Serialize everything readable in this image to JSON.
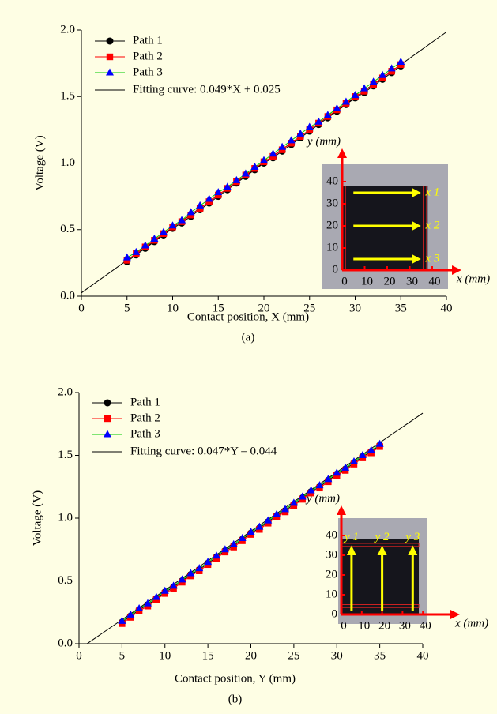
{
  "chart_data": [
    {
      "type": "line",
      "caption": "(a)",
      "x_label": "Contact position, X (mm)",
      "y_label": "Voltage (V)",
      "xlim": [
        0,
        40
      ],
      "xticks": [
        0,
        5,
        10,
        15,
        20,
        25,
        30,
        35,
        40
      ],
      "ylim": [
        0,
        2
      ],
      "yticks": [
        {
          "value": 0,
          "label": "0.0"
        },
        0.5,
        {
          "value": 1,
          "label": "1.0"
        },
        1.5,
        {
          "value": 2,
          "label": "2.0"
        }
      ],
      "x": [
        5,
        6,
        7,
        8,
        9,
        10,
        11,
        12,
        13,
        14,
        15,
        16,
        17,
        18,
        19,
        20,
        21,
        22,
        23,
        24,
        25,
        26,
        27,
        28,
        29,
        30,
        31,
        32,
        33,
        34,
        35
      ],
      "series": [
        {
          "name": "Path 1",
          "color": "#000000",
          "marker": "circle",
          "marker_color": "#000000",
          "values": [
            0.26,
            0.31,
            0.36,
            0.41,
            0.46,
            0.51,
            0.55,
            0.6,
            0.65,
            0.7,
            0.75,
            0.8,
            0.85,
            0.9,
            0.95,
            1.0,
            1.04,
            1.09,
            1.14,
            1.19,
            1.24,
            1.29,
            1.34,
            1.39,
            1.44,
            1.49,
            1.53,
            1.58,
            1.63,
            1.68,
            1.73
          ]
        },
        {
          "name": "Path 2",
          "color": "#ff0000",
          "marker": "square",
          "marker_color": "#ff0000",
          "values": [
            0.27,
            0.32,
            0.37,
            0.42,
            0.47,
            0.52,
            0.56,
            0.61,
            0.66,
            0.71,
            0.76,
            0.81,
            0.86,
            0.91,
            0.96,
            1.01,
            1.05,
            1.1,
            1.15,
            1.2,
            1.25,
            1.3,
            1.35,
            1.4,
            1.45,
            1.5,
            1.54,
            1.59,
            1.64,
            1.69,
            1.74
          ]
        },
        {
          "name": "Path 3",
          "color": "#00cc00",
          "marker": "triangle",
          "marker_color": "#0000ff",
          "values": [
            0.29,
            0.33,
            0.38,
            0.43,
            0.48,
            0.53,
            0.57,
            0.63,
            0.68,
            0.73,
            0.78,
            0.82,
            0.87,
            0.92,
            0.97,
            1.02,
            1.07,
            1.12,
            1.17,
            1.22,
            1.27,
            1.31,
            1.36,
            1.41,
            1.46,
            1.51,
            1.56,
            1.61,
            1.66,
            1.71,
            1.76
          ]
        }
      ],
      "fit": {
        "name": "Fitting curve: 0.049*X + 0.025",
        "color": "#000000",
        "x": [
          0,
          40
        ],
        "values": [
          0.025,
          1.985
        ]
      },
      "inset": {
        "x_label": "x (mm)",
        "y_label": "y (mm)",
        "xticks": [
          0,
          10,
          20,
          30,
          40
        ],
        "yticks": [
          0,
          10,
          20,
          30,
          40
        ],
        "path_labels": [
          "x 1",
          "x 2",
          "x 3"
        ]
      }
    },
    {
      "type": "line",
      "caption": "(b)",
      "x_label": "Contact position, Y (mm)",
      "y_label": "Voltage (V)",
      "xlim": [
        0,
        40
      ],
      "xticks": [
        0,
        5,
        10,
        15,
        20,
        25,
        30,
        35,
        40
      ],
      "ylim": [
        0,
        2
      ],
      "yticks": [
        {
          "value": 0,
          "label": "0.0"
        },
        0.5,
        {
          "value": 1,
          "label": "1.0"
        },
        1.5,
        {
          "value": 2,
          "label": "2.0"
        }
      ],
      "x": [
        5,
        6,
        7,
        8,
        9,
        10,
        11,
        12,
        13,
        14,
        15,
        16,
        17,
        18,
        19,
        20,
        21,
        22,
        23,
        24,
        25,
        26,
        27,
        28,
        29,
        30,
        31,
        32,
        33,
        34,
        35
      ],
      "series": [
        {
          "name": "Path 1",
          "color": "#000000",
          "marker": "circle",
          "marker_color": "#000000",
          "values": [
            0.17,
            0.22,
            0.27,
            0.31,
            0.36,
            0.41,
            0.45,
            0.5,
            0.55,
            0.59,
            0.64,
            0.69,
            0.74,
            0.78,
            0.83,
            0.88,
            0.92,
            0.97,
            1.02,
            1.06,
            1.11,
            1.16,
            1.21,
            1.25,
            1.3,
            1.35,
            1.39,
            1.44,
            1.49,
            1.53,
            1.58
          ]
        },
        {
          "name": "Path 2",
          "color": "#ff0000",
          "marker": "square",
          "marker_color": "#ff0000",
          "values": [
            0.16,
            0.21,
            0.26,
            0.3,
            0.35,
            0.4,
            0.44,
            0.49,
            0.54,
            0.58,
            0.63,
            0.68,
            0.73,
            0.77,
            0.82,
            0.87,
            0.91,
            0.96,
            1.01,
            1.05,
            1.1,
            1.15,
            1.2,
            1.24,
            1.29,
            1.34,
            1.38,
            1.43,
            1.48,
            1.52,
            1.57
          ]
        },
        {
          "name": "Path 3",
          "color": "#00cc00",
          "marker": "triangle",
          "marker_color": "#0000ff",
          "values": [
            0.18,
            0.23,
            0.28,
            0.32,
            0.37,
            0.42,
            0.46,
            0.51,
            0.56,
            0.6,
            0.65,
            0.7,
            0.75,
            0.79,
            0.84,
            0.89,
            0.93,
            0.98,
            1.03,
            1.07,
            1.12,
            1.17,
            1.22,
            1.26,
            1.31,
            1.36,
            1.4,
            1.45,
            1.5,
            1.54,
            1.59
          ]
        }
      ],
      "fit": {
        "name": "Fitting curve: 0.047*Y – 0.044",
        "color": "#000000",
        "x": [
          0,
          40
        ],
        "values": [
          -0.044,
          1.836
        ]
      },
      "inset": {
        "x_label": "x (mm)",
        "y_label": "y (mm)",
        "xticks": [
          0,
          10,
          20,
          30,
          40
        ],
        "yticks": [
          0,
          10,
          20,
          30,
          40
        ],
        "path_labels": [
          "y 1",
          "y 2",
          "y 3"
        ]
      }
    }
  ]
}
